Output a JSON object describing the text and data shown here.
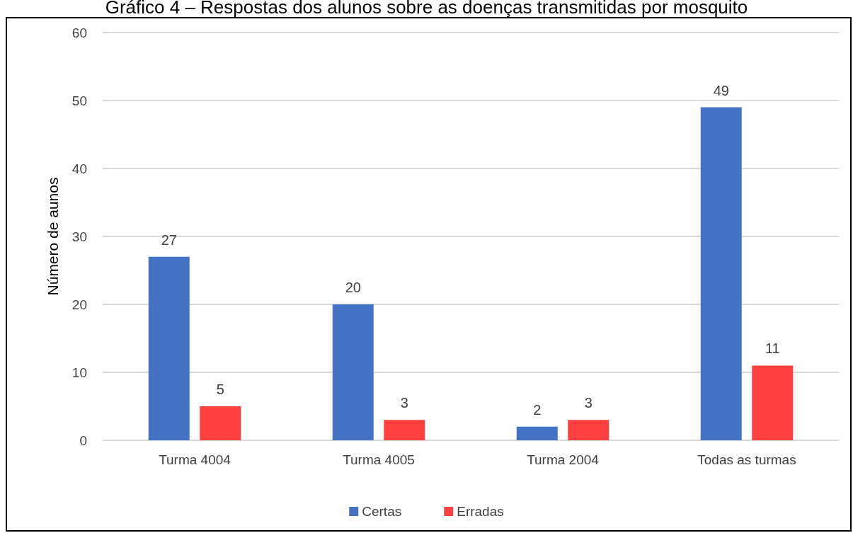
{
  "chart_data": {
    "type": "bar",
    "title": "Gráfico 4 – Respostas dos alunos sobre as doenças transmitidas por mosquito",
    "ylabel": "Número de aunos",
    "categories": [
      "Turma 4004",
      "Turma 4005",
      "Turma 2004",
      "Todas as turmas"
    ],
    "series": [
      {
        "name": "Certas",
        "color": "#4472c4",
        "values": [
          27,
          20,
          2,
          49
        ]
      },
      {
        "name": "Erradas",
        "color": "#ff4040",
        "values": [
          5,
          3,
          3,
          11
        ]
      }
    ],
    "ylim": [
      0,
      60
    ],
    "yticks": [
      0,
      10,
      20,
      30,
      40,
      50,
      60
    ],
    "grid": "y",
    "legend": "bottom",
    "data_labels": true
  }
}
